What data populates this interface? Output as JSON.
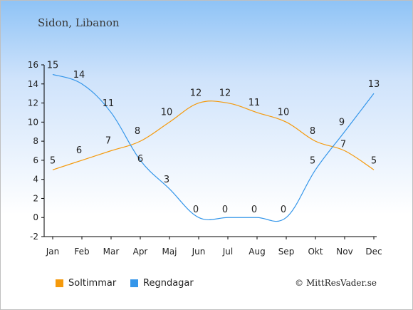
{
  "page": {
    "title": "Sidon, Libanon",
    "copyright": "© MittResVader.se"
  },
  "legend": {
    "sun_label": "Soltimmar",
    "rain_label": "Regndagar"
  },
  "colors": {
    "sun": "#f59a0c",
    "rain": "#3496ea",
    "axis": "#000000"
  },
  "chart_data": {
    "type": "line",
    "title": "Sidon, Libanon",
    "categories": [
      "Jan",
      "Feb",
      "Mar",
      "Apr",
      "Maj",
      "Jun",
      "Jul",
      "Aug",
      "Sep",
      "Okt",
      "Nov",
      "Dec"
    ],
    "series": [
      {
        "name": "Soltimmar",
        "color": "#f59a0c",
        "values": [
          5,
          6,
          7,
          8,
          10,
          12,
          12,
          11,
          10,
          8,
          7,
          5
        ]
      },
      {
        "name": "Regndagar",
        "color": "#3496ea",
        "values": [
          15,
          14,
          11,
          6,
          3,
          0,
          0,
          0,
          0,
          5,
          9,
          13
        ]
      }
    ],
    "ylim": [
      -2,
      16
    ],
    "yticks": [
      -2,
      0,
      2,
      4,
      6,
      8,
      10,
      12,
      14,
      16
    ],
    "grid": false,
    "legend_position": "bottom-left"
  }
}
